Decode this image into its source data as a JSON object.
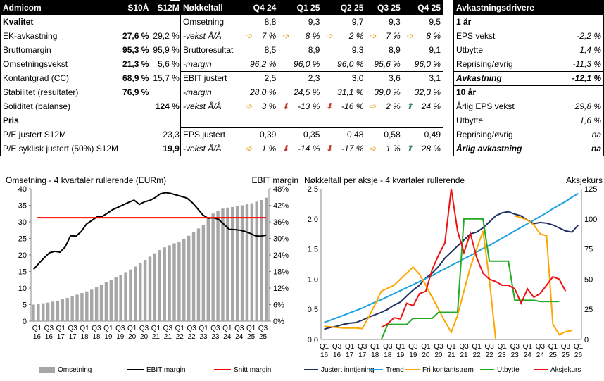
{
  "kval": {
    "headers": [
      "Admicom",
      "S10Å",
      "S12M"
    ],
    "section1": "Kvalitet",
    "rows": [
      {
        "label": "EK-avkastning",
        "a": "27,6 %",
        "b": "29,2 %",
        "bold_a": true
      },
      {
        "label": "Bruttomargin",
        "a": "95,3 %",
        "b": "95,9 %",
        "bold_a": true
      },
      {
        "label": "Omsetningsvekst",
        "a": "21,3 %",
        "b": "5,6 %",
        "bold_a": true
      },
      {
        "label": "Kontantgrad (CC)",
        "a": "68,9 %",
        "b": "15,7 %",
        "bold_a": true
      },
      {
        "label": "Stabilitet (resultater)",
        "a": "76,9 %",
        "b": "",
        "bold_a": true
      },
      {
        "label": "Soliditet (balanse)",
        "a": "",
        "b": "124 %",
        "bold_b": true
      }
    ],
    "section2": "Pris",
    "pris": [
      {
        "label": "P/E justert S12M",
        "a": "",
        "b": "23,3"
      },
      {
        "label": "P/E syklisk justert (50%) S12M",
        "a": "",
        "b": "19,9",
        "bold_b": true
      }
    ]
  },
  "nokkel": {
    "headers": [
      "Nøkkeltall",
      "Q4 24",
      "Q1 25",
      "Q2 25",
      "Q3 25",
      "Q4 25"
    ],
    "rows": [
      {
        "label": "Omsetning",
        "vals": [
          "8,8",
          "9,3",
          "9,7",
          "9,3",
          "9,5"
        ],
        "italic": false,
        "arrows": [
          "",
          "",
          "",
          "",
          ""
        ]
      },
      {
        "label": "-vekst Å/Å",
        "vals": [
          "7 %",
          "8 %",
          "2 %",
          "7 %",
          "8 %"
        ],
        "italic": true,
        "arrows": [
          "r",
          "r",
          "r",
          "r",
          "r"
        ]
      },
      {
        "label": "Bruttoresultat",
        "vals": [
          "8,5",
          "8,9",
          "9,3",
          "8,9",
          "9,1"
        ],
        "italic": false,
        "arrows": [
          "",
          "",
          "",
          "",
          ""
        ]
      },
      {
        "label": "-margin",
        "vals": [
          "96,2 %",
          "96,0 %",
          "96,0 %",
          "95,6 %",
          "96,0 %"
        ],
        "italic": true,
        "arrows": [
          "",
          "",
          "",
          "",
          ""
        ]
      },
      {
        "label": "EBIT justert",
        "vals": [
          "2,5",
          "2,3",
          "3,0",
          "3,6",
          "3,1"
        ],
        "italic": false,
        "arrows": [
          "",
          "",
          "",
          "",
          ""
        ],
        "sep": true
      },
      {
        "label": "-margin",
        "vals": [
          "28,0 %",
          "24,5 %",
          "31,1 %",
          "39,0 %",
          "32,3 %"
        ],
        "italic": true,
        "arrows": [
          "",
          "",
          "",
          "",
          ""
        ]
      },
      {
        "label": "-vekst Å/Å",
        "vals": [
          "3 %",
          "-13 %",
          "-16 %",
          "2 %",
          "24 %"
        ],
        "italic": true,
        "arrows": [
          "r",
          "d",
          "d",
          "r",
          "u"
        ]
      },
      {
        "label": "",
        "vals": [
          "",
          "",
          "",
          "",
          ""
        ],
        "italic": false,
        "arrows": [
          "",
          "",
          "",
          "",
          ""
        ]
      },
      {
        "label": "EPS justert",
        "vals": [
          "0,39",
          "0,35",
          "0,48",
          "0,58",
          "0,49"
        ],
        "italic": false,
        "arrows": [
          "",
          "",
          "",
          "",
          ""
        ],
        "sep": true
      },
      {
        "label": "-vekst Å/Å",
        "vals": [
          "1 %",
          "-14 %",
          "-17 %",
          "1 %",
          "28 %"
        ],
        "italic": true,
        "arrows": [
          "r",
          "d",
          "d",
          "r",
          "u"
        ]
      }
    ]
  },
  "avk": {
    "header": "Avkastningsdrivere",
    "s1": "1 år",
    "rows1": [
      {
        "label": "EPS vekst",
        "v": "-2,2 %"
      },
      {
        "label": "Utbytte",
        "v": "1,4 %"
      },
      {
        "label": "Reprising/øvrig",
        "v": "-11,3 %"
      }
    ],
    "total1": {
      "label": "Avkastning",
      "v": "-12,1 %"
    },
    "s2": "10 år",
    "rows2": [
      {
        "label": "Årlig EPS vekst",
        "v": "29,8 %"
      },
      {
        "label": "Utbytte",
        "v": "1,6 %"
      },
      {
        "label": "Reprising/øvrig",
        "v": "na"
      }
    ],
    "total2": {
      "label": "Årlig avkastning",
      "v": "na"
    }
  },
  "chart_data": [
    {
      "type": "bar",
      "title": "Omsetning - 4 kvartaler rullerende (EURm)",
      "y2label": "EBIT margin",
      "ylim": [
        0,
        40
      ],
      "y2lim": [
        0,
        48
      ],
      "yticks": [
        "0",
        "5",
        "10",
        "15",
        "20",
        "25",
        "30",
        "35",
        "40"
      ],
      "y2ticks": [
        "0%",
        "6%",
        "12%",
        "18%",
        "24%",
        "30%",
        "36%",
        "42%",
        "48%"
      ],
      "xticks": [
        "Q1 16",
        "Q3 16",
        "Q1 17",
        "Q3 17",
        "Q1 18",
        "Q3 18",
        "Q1 19",
        "Q3 19",
        "Q1 20",
        "Q3 20",
        "Q1 21",
        "Q3 21",
        "Q1 22",
        "Q3 22",
        "Q1 23",
        "Q3 23",
        "Q1 24",
        "Q3 24",
        "Q1 25",
        "Q3 25"
      ],
      "series": [
        {
          "name": "Omsetning",
          "axis": "left",
          "color": "#a6a6a6",
          "values": [
            5.0,
            5.2,
            5.4,
            5.6,
            5.9,
            6.2,
            6.6,
            7.0,
            7.5,
            8.0,
            8.5,
            9.0,
            9.5,
            10.2,
            11.0,
            11.8,
            12.5,
            13.3,
            14.0,
            14.8,
            15.6,
            16.5,
            17.5,
            18.5,
            19.5,
            20.5,
            21.5,
            22.3,
            22.9,
            23.5,
            24.0,
            24.8,
            25.8,
            26.8,
            28.0,
            29.0,
            31.0,
            32.5,
            33.3,
            34.0,
            34.3,
            34.5,
            34.8,
            35.0,
            35.3,
            35.6,
            36.1,
            36.6,
            37.3
          ]
        },
        {
          "name": "EBIT margin",
          "axis": "right",
          "color": "#000000",
          "values": [
            18.8,
            21.0,
            23.0,
            24.8,
            25.3,
            25.0,
            27.0,
            31.0,
            30.8,
            32.5,
            35.2,
            36.5,
            37.8,
            38.0,
            39.2,
            40.5,
            41.3,
            42.2,
            43.1,
            43.9,
            42.3,
            43.3,
            43.8,
            44.8,
            46.2,
            46.6,
            46.3,
            45.7,
            45.2,
            44.6,
            43.0,
            40.8,
            38.5,
            37.3,
            37.5,
            36.9,
            35.1,
            33.3,
            33.2,
            33.0,
            32.5,
            31.8,
            30.9,
            30.8,
            31.2
          ]
        },
        {
          "name": "Snitt margin",
          "axis": "right",
          "color": "#ff0000",
          "values": [
            37.5
          ]
        }
      ],
      "legend": [
        "Omsetning",
        "EBIT margin",
        "Snitt margin"
      ]
    },
    {
      "type": "line",
      "title": "Nøkkeltall per aksje - 4 kvartaler rullerende",
      "y2label": "Aksjekurs",
      "ylim": [
        0,
        2.5
      ],
      "y2lim": [
        0,
        125
      ],
      "yticks": [
        "0,0",
        "0,5",
        "1,0",
        "1,5",
        "2,0",
        "2,5"
      ],
      "y2ticks": [
        "0",
        "25",
        "50",
        "75",
        "100",
        "125"
      ],
      "xticks": [
        "Q1 16",
        "Q3 16",
        "Q1 17",
        "Q3 17",
        "Q1 18",
        "Q3 18",
        "Q1 19",
        "Q3 19",
        "Q1 20",
        "Q3 20",
        "Q1 21",
        "Q3 21",
        "Q1 22",
        "Q3 22",
        "Q1 23",
        "Q3 23",
        "Q1 24",
        "Q3 24",
        "Q1 25",
        "Q3 25",
        "Q1 26"
      ],
      "series": [
        {
          "name": "Justert inntjening",
          "axis": "left",
          "color": "#1f2f5f",
          "values": [
            0.17,
            0.2,
            0.22,
            0.25,
            0.27,
            0.28,
            0.32,
            0.37,
            0.41,
            0.45,
            0.5,
            0.57,
            0.62,
            0.72,
            0.82,
            0.9,
            1.02,
            1.1,
            1.21,
            1.35,
            1.45,
            1.55,
            1.65,
            1.75,
            1.78,
            1.85,
            1.95,
            2.05,
            2.1,
            2.12,
            2.08,
            2.05,
            1.98,
            1.92,
            1.94,
            1.93,
            1.9,
            1.85,
            1.8,
            1.78,
            1.9
          ]
        },
        {
          "name": "Trend",
          "axis": "left",
          "color": "#1aa3e0",
          "values": [
            0.28,
            0.32,
            0.36,
            0.4,
            0.44,
            0.48,
            0.52,
            0.57,
            0.62,
            0.66,
            0.71,
            0.76,
            0.81,
            0.86,
            0.91,
            0.96,
            1.01,
            1.06,
            1.12,
            1.17,
            1.23,
            1.28,
            1.34,
            1.39,
            1.45,
            1.51,
            1.56,
            1.62,
            1.68,
            1.74,
            1.8,
            1.86,
            1.92,
            1.98,
            2.04,
            2.1,
            2.17,
            2.23,
            2.29,
            2.36,
            2.42
          ]
        },
        {
          "name": "Fri kontantstrøm",
          "axis": "left",
          "color": "#ffa500",
          "values": [
            0.22,
            0.21,
            0.2,
            0.19,
            0.19,
            0.19,
            0.18,
            0.37,
            0.58,
            0.8,
            0.85,
            0.9,
            1.0,
            1.1,
            1.2,
            1.08,
            0.9,
            0.7,
            0.5,
            0.3,
            0.12,
            0.4,
            0.8,
            1.2,
            1.5,
            1.8,
            1.0,
            0.0,
            null,
            null,
            2.05,
            2.02,
            1.98,
            1.9,
            1.75,
            1.72,
            0.25,
            0.08,
            0.13,
            0.15
          ]
        },
        {
          "name": "Utbytte",
          "axis": "left",
          "color": "#22aa22",
          "values": [
            null,
            null,
            null,
            null,
            null,
            null,
            null,
            null,
            null,
            0.0,
            0.25,
            0.25,
            0.25,
            0.25,
            0.35,
            0.35,
            0.35,
            0.35,
            0.45,
            0.45,
            0.45,
            0.45,
            2.0,
            2.0,
            2.0,
            2.0,
            1.3,
            1.3,
            1.3,
            1.3,
            0.65,
            0.65,
            0.65,
            0.65,
            0.63,
            0.63,
            0.63,
            0.63
          ]
        },
        {
          "name": "Aksjekurs",
          "axis": "right",
          "color": "#ee1111",
          "values": [
            null,
            null,
            null,
            null,
            null,
            null,
            null,
            null,
            null,
            10,
            13,
            18,
            17,
            30,
            28,
            38,
            40,
            58,
            70,
            80,
            125,
            90,
            72,
            88,
            68,
            55,
            50,
            48,
            45,
            45,
            42,
            30,
            42,
            35,
            38,
            45,
            52,
            50,
            40
          ]
        }
      ],
      "legend": [
        "Justert inntjening",
        "Trend",
        "Fri kontantstrøm",
        "Utbytte",
        "Aksjekurs"
      ]
    }
  ]
}
